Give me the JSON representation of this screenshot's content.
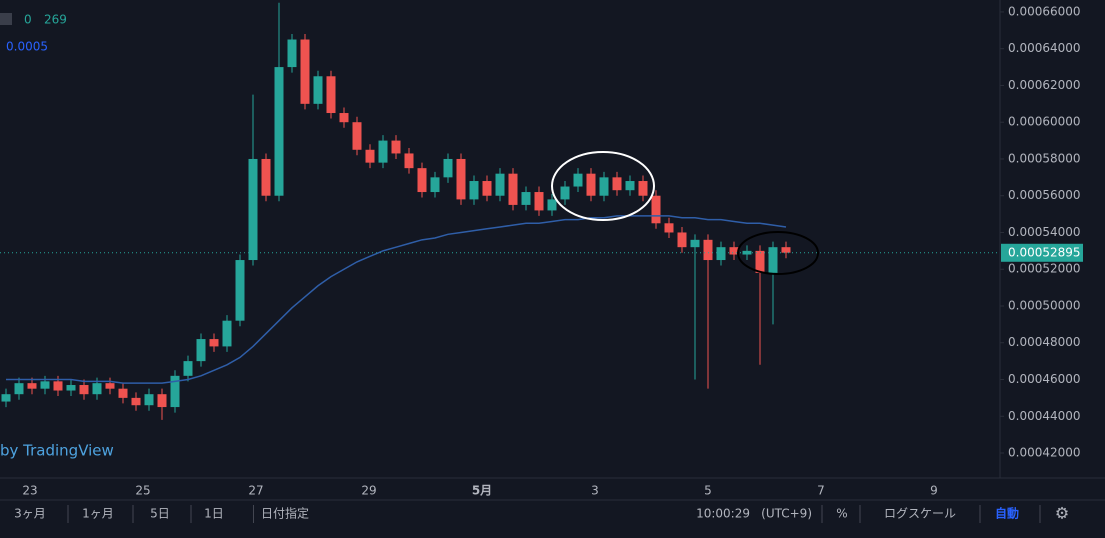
{
  "chart_data": {
    "type": "candlestick",
    "legend": {
      "volume_ma": "0",
      "volume": "269",
      "ma_value": "0.0005",
      "credit": "by TradingView"
    },
    "x_labels": [
      "23",
      "25",
      "27",
      "29",
      "5月",
      "3",
      "5",
      "7",
      "9"
    ],
    "ylim": [
      0.0004064,
      0.0006665
    ],
    "yticks": [
      {
        "value": 0.00066,
        "label": "0.00066000"
      },
      {
        "value": 0.00064,
        "label": "0.00064000"
      },
      {
        "value": 0.00062,
        "label": "0.00062000"
      },
      {
        "value": 0.0006,
        "label": "0.00060000"
      },
      {
        "value": 0.00058,
        "label": "0.00058000"
      },
      {
        "value": 0.00056,
        "label": "0.00056000"
      },
      {
        "value": 0.00054,
        "label": "0.00054000"
      },
      {
        "value": 0.00052,
        "label": "0.00052000"
      },
      {
        "value": 0.0005,
        "label": "0.00050000"
      },
      {
        "value": 0.00048,
        "label": "0.00048000"
      },
      {
        "value": 0.00046,
        "label": "0.00046000"
      },
      {
        "value": 0.00044,
        "label": "0.00044000"
      },
      {
        "value": 0.00042,
        "label": "0.00042000"
      }
    ],
    "up_color": "#26a69a",
    "down_color": "#ef5350",
    "ma_color": "#2f5ea8",
    "last_price": 0.00052895,
    "open": [
      0.000448,
      0.000452,
      0.000458,
      0.000455,
      0.000459,
      0.000454,
      0.000457,
      0.000452,
      0.000458,
      0.000455,
      0.00045,
      0.000446,
      0.000452,
      0.000445,
      0.000462,
      0.00047,
      0.000482,
      0.000478,
      0.000492,
      0.000525,
      0.00058,
      0.00056,
      0.00063,
      0.000645,
      0.00061,
      0.000625,
      0.000605,
      0.0006,
      0.000585,
      0.000578,
      0.00059,
      0.000583,
      0.000575,
      0.000562,
      0.00057,
      0.00058,
      0.000558,
      0.000568,
      0.00056,
      0.000572,
      0.000555,
      0.000562,
      0.000552,
      0.000558,
      0.000565,
      0.000572,
      0.00056,
      0.00057,
      0.000563,
      0.000568,
      0.00056,
      0.000545,
      0.00054,
      0.000532,
      0.000536,
      0.000525,
      0.000532,
      0.000528,
      0.00053,
      0.000518,
      0.000532
    ],
    "high": [
      0.000455,
      0.000461,
      0.000461,
      0.000462,
      0.000462,
      0.00046,
      0.00046,
      0.000461,
      0.000461,
      0.000458,
      0.000453,
      0.000455,
      0.000455,
      0.000465,
      0.000473,
      0.000485,
      0.000485,
      0.000495,
      0.000528,
      0.000615,
      0.000583,
      0.000665,
      0.000648,
      0.000648,
      0.000628,
      0.000628,
      0.000608,
      0.000603,
      0.000588,
      0.000593,
      0.000593,
      0.000586,
      0.000578,
      0.000573,
      0.000583,
      0.000583,
      0.000571,
      0.000571,
      0.000575,
      0.000575,
      0.000565,
      0.000565,
      0.000561,
      0.000568,
      0.000575,
      0.000575,
      0.000573,
      0.000573,
      0.000571,
      0.000571,
      0.000563,
      0.000548,
      0.000543,
      0.000539,
      0.000539,
      0.000535,
      0.000535,
      0.000533,
      0.000533,
      0.000535,
      0.000535
    ],
    "low": [
      0.000445,
      0.000449,
      0.000452,
      0.000452,
      0.000451,
      0.000451,
      0.000449,
      0.000449,
      0.000452,
      0.000447,
      0.000443,
      0.000443,
      0.000438,
      0.000442,
      0.000459,
      0.000467,
      0.000475,
      0.000475,
      0.000489,
      0.000522,
      0.000557,
      0.000557,
      0.000627,
      0.000607,
      0.000607,
      0.000602,
      0.000597,
      0.000582,
      0.000575,
      0.000575,
      0.00058,
      0.000572,
      0.000559,
      0.000559,
      0.000567,
      0.000555,
      0.000555,
      0.000557,
      0.000557,
      0.000552,
      0.000552,
      0.000549,
      0.000549,
      0.000555,
      0.000562,
      0.000557,
      0.000557,
      0.00056,
      0.00056,
      0.000557,
      0.000542,
      0.000537,
      0.000529,
      0.00046,
      0.000455,
      0.000522,
      0.000525,
      0.000525,
      0.000468,
      0.00049,
      0.000526
    ],
    "close": [
      0.000452,
      0.000458,
      0.000455,
      0.000459,
      0.000454,
      0.000457,
      0.000452,
      0.000458,
      0.000455,
      0.00045,
      0.000446,
      0.000452,
      0.000445,
      0.000462,
      0.00047,
      0.000482,
      0.000478,
      0.000492,
      0.000525,
      0.00058,
      0.00056,
      0.00063,
      0.000645,
      0.00061,
      0.000625,
      0.000605,
      0.0006,
      0.000585,
      0.000578,
      0.00059,
      0.000583,
      0.000575,
      0.000562,
      0.00057,
      0.00058,
      0.000558,
      0.000568,
      0.00056,
      0.000572,
      0.000555,
      0.000562,
      0.000552,
      0.000558,
      0.000565,
      0.000572,
      0.00056,
      0.00057,
      0.000563,
      0.000568,
      0.00056,
      0.000545,
      0.00054,
      0.000532,
      0.000536,
      0.000525,
      0.000532,
      0.000528,
      0.00053,
      0.000518,
      0.000532,
      0.000529
    ],
    "ma": [
      0.00046,
      0.00046,
      0.00046,
      0.00046,
      0.00046,
      0.00046,
      0.000459,
      0.000459,
      0.000459,
      0.000458,
      0.000458,
      0.000458,
      0.000458,
      0.000459,
      0.00046,
      0.000462,
      0.000465,
      0.000468,
      0.000472,
      0.000478,
      0.000485,
      0.000492,
      0.000499,
      0.000505,
      0.000511,
      0.000516,
      0.00052,
      0.000524,
      0.000527,
      0.00053,
      0.000532,
      0.000534,
      0.000536,
      0.000537,
      0.000539,
      0.00054,
      0.000541,
      0.000542,
      0.000543,
      0.000544,
      0.000545,
      0.000545,
      0.000546,
      0.000547,
      0.000547,
      0.000548,
      0.000548,
      0.000549,
      0.000549,
      0.000549,
      0.000549,
      0.000549,
      0.000548,
      0.000548,
      0.000547,
      0.000547,
      0.000546,
      0.000545,
      0.000545,
      0.000544,
      0.000543
    ]
  },
  "toolbar": {
    "ranges": [
      "3ヶ月",
      "1ヶ月",
      "5日",
      "1日",
      "日付指定"
    ],
    "time": "10:00:29",
    "zone": "(UTC+9)",
    "percent": "%",
    "log": "ログスケール",
    "auto": "自動"
  }
}
